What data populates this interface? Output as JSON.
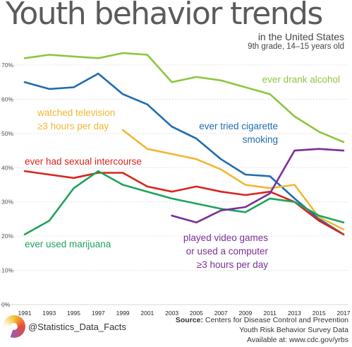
{
  "chart_data": {
    "type": "line",
    "title": "Youth behavior trends",
    "subtitle": "in the United States",
    "subtitle2": "9th grade, 14–15 years old",
    "xlabel": "",
    "ylabel": "",
    "x": [
      "1991",
      "1993",
      "1995",
      "1997",
      "1999",
      "2001",
      "2003",
      "2005",
      "2007",
      "2009",
      "2011",
      "2013",
      "2015",
      "2017"
    ],
    "ylim": [
      0,
      70
    ],
    "yticks": [
      "0%",
      "10%",
      "20%",
      "30%",
      "40%",
      "50%",
      "60%",
      "70%"
    ],
    "grid": "horizontal",
    "series": [
      {
        "name": "ever drank alcohol",
        "color": "#8dc63f",
        "values": [
          72,
          73,
          72.5,
          72,
          73.5,
          73,
          65,
          66.5,
          65.5,
          63.5,
          61.5,
          55,
          50.5,
          47.5
        ]
      },
      {
        "name": "ever tried cigarette smoking",
        "color": "#1f6cb0",
        "values": [
          65,
          63,
          63.5,
          67.5,
          61.5,
          58.5,
          52,
          48.5,
          42.5,
          38,
          37.5,
          31,
          25,
          20.5
        ]
      },
      {
        "name": "watched television ≥3 hours per day",
        "color": "#f2b632",
        "values": [
          null,
          null,
          null,
          null,
          51,
          45.5,
          44,
          42.5,
          39.5,
          35,
          34,
          35,
          25.5,
          22
        ]
      },
      {
        "name": "ever had sexual intercourse",
        "color": "#d9251d",
        "values": [
          39,
          38,
          37,
          38.5,
          38.5,
          34.5,
          33,
          34.5,
          33,
          32,
          33,
          30,
          24.5,
          20.5
        ]
      },
      {
        "name": "ever used marijuana",
        "color": "#1fa35b",
        "values": [
          20.5,
          24.5,
          34,
          39,
          35,
          33,
          31,
          29.5,
          28,
          27,
          31,
          30,
          26,
          24
        ]
      },
      {
        "name": "played video games or used a computer ≥3 hours per day",
        "color": "#7b2f96",
        "values": [
          null,
          null,
          null,
          null,
          null,
          null,
          26,
          24,
          27.5,
          28.5,
          32.5,
          45,
          45.5,
          45
        ]
      }
    ],
    "labels": [
      {
        "lines": [
          "ever drank alcohol"
        ],
        "color": "#8dc63f"
      },
      {
        "lines": [
          "watched television",
          "≥3 hours per day"
        ],
        "color": "#f2b632"
      },
      {
        "lines": [
          "ever tried cigarette",
          "smoking"
        ],
        "color": "#1f6cb0"
      },
      {
        "lines": [
          "ever had sexual intercourse"
        ],
        "color": "#d9251d"
      },
      {
        "lines": [
          "ever used marijuana"
        ],
        "color": "#1fa35b"
      },
      {
        "lines": [
          "played video games",
          "or used a computer",
          "≥3 hours per day"
        ],
        "color": "#7b2f96"
      }
    ]
  },
  "footer": {
    "handle": "@Statistics_Data_Facts",
    "source_key": "Source:",
    "source_org": "Centers for Disease Control and Prevention",
    "source_survey": "Youth Risk Behavior Survey Data",
    "source_url": "Available at: www.cdc.gov/yrbs"
  }
}
